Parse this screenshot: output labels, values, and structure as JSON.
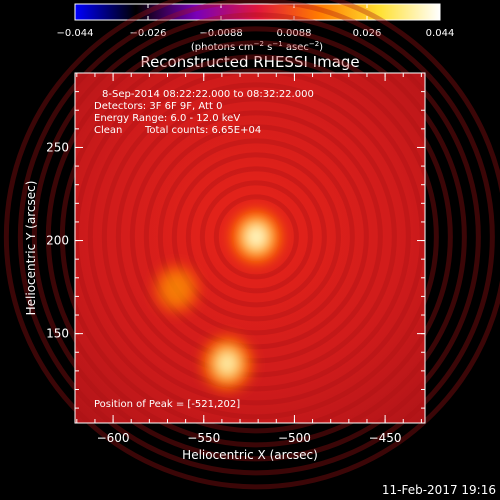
{
  "colorbar": {
    "ticks": [
      "−0.044",
      "−0.026",
      "−0.0088",
      "0.0088",
      "0.026",
      "0.044"
    ],
    "units_main": "(photons cm",
    "units_sup1": "−2",
    "units_mid1": " s",
    "units_sup2": "−1",
    "units_mid2": " asec",
    "units_sup3": "−2",
    "units_end": ")",
    "colors": [
      "#0000ff",
      "#000000",
      "#7a00b8",
      "#e0163c",
      "#ff7a00",
      "#ffe030",
      "#ffffff"
    ]
  },
  "title": "Reconstructed RHESSI Image",
  "info": {
    "time_range": "8-Sep-2014 08:22:22.000 to 08:32:22.000",
    "detectors": "Detectors: 3F 6F 9F, Att 0",
    "energy_range": "Energy Range: 6.0 - 12.0 keV",
    "method": "Clean",
    "total_counts": "Total counts: 6.65E+04"
  },
  "peak_text": "Position of Peak = [-521,202]",
  "x_axis": {
    "label": "Heliocentric X (arcsec)",
    "ticks": [
      {
        "value": -600,
        "label": "−600"
      },
      {
        "value": -550,
        "label": "−550"
      },
      {
        "value": -500,
        "label": "−500"
      },
      {
        "value": -450,
        "label": "−450"
      }
    ],
    "range": [
      -621,
      -428
    ]
  },
  "y_axis": {
    "label": "Heliocentric Y (arcsec)",
    "ticks": [
      {
        "value": 150,
        "label": "150"
      },
      {
        "value": 200,
        "label": "200"
      },
      {
        "value": 250,
        "label": "250"
      }
    ],
    "range": [
      102,
      290
    ]
  },
  "sources": [
    {
      "x": -521,
      "y": 202,
      "intensity": 1.0,
      "sigma": 9
    },
    {
      "x": -537,
      "y": 134,
      "intensity": 0.85,
      "sigma": 9
    },
    {
      "x": -565,
      "y": 174,
      "intensity": 0.45,
      "sigma": 8
    }
  ],
  "timestamp": "11-Feb-2017 19:16"
}
